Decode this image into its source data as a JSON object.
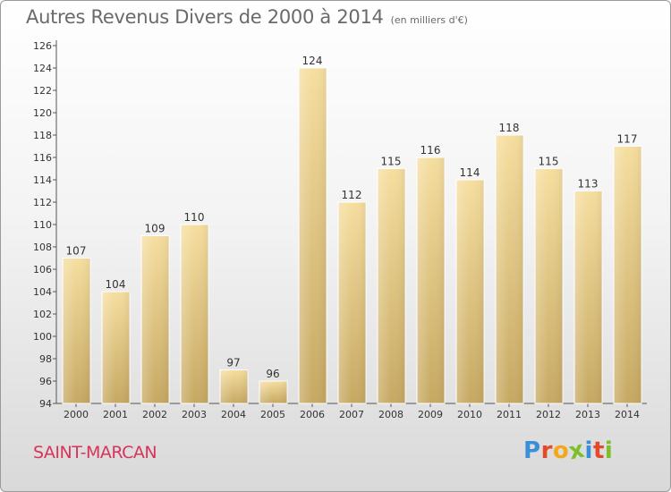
{
  "header": {
    "title": "Autres Revenus Divers de 2000 à 2014",
    "subtitle": "(en milliers d'€)"
  },
  "footer": {
    "city": "SAINT-MARCAN",
    "logo_letters": [
      "P",
      "r",
      "o",
      "x",
      "i",
      "t",
      "i"
    ],
    "logo_colors": [
      "#3a8fd6",
      "#e24a2b",
      "#f2a81c",
      "#7cbf2a",
      "#3a8fd6",
      "#e24a2b",
      "#7cbf2a"
    ]
  },
  "chart_data": {
    "type": "bar",
    "title": "Autres Revenus Divers de 2000 à 2014",
    "subtitle": "(en milliers d'€)",
    "categories": [
      "2000",
      "2001",
      "2002",
      "2003",
      "2004",
      "2005",
      "2006",
      "2007",
      "2008",
      "2009",
      "2010",
      "2011",
      "2012",
      "2013",
      "2014"
    ],
    "values": [
      107,
      104,
      109,
      110,
      97,
      96,
      124,
      112,
      115,
      116,
      114,
      118,
      115,
      113,
      117
    ],
    "ylim": [
      94,
      126
    ],
    "yticks": [
      94,
      96,
      98,
      100,
      102,
      104,
      106,
      108,
      110,
      112,
      114,
      116,
      118,
      120,
      122,
      124,
      126
    ],
    "grid": false,
    "data_labels": true,
    "colors": {
      "bar_light": "#f5dc9c",
      "bar_dark": "#c4a65e",
      "axis": "#555555"
    }
  }
}
